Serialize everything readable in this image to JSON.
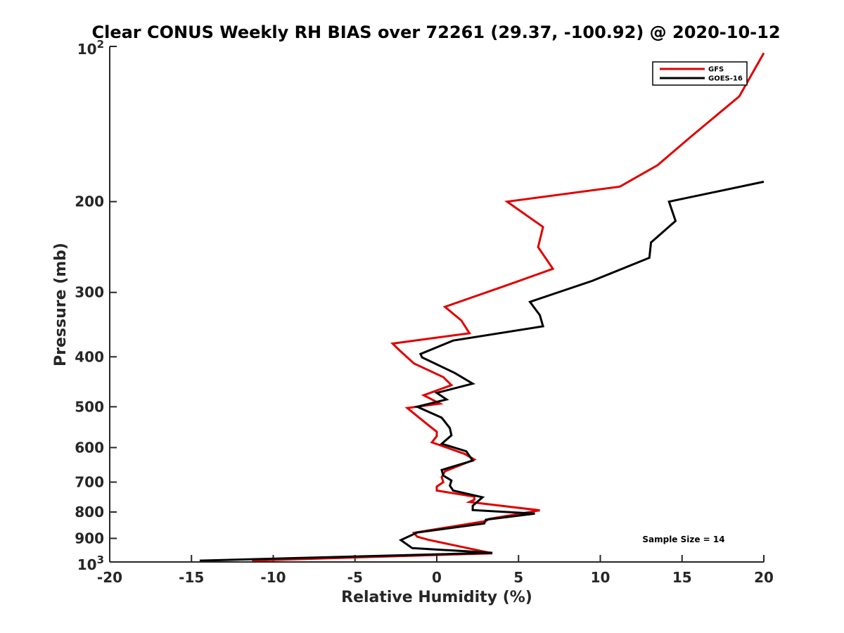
{
  "chart_data": {
    "type": "line",
    "title": "Clear CONUS Weekly RH BIAS over 72261 (29.37, -100.92) @ 2020-10-12",
    "xlabel": "Relative Humidity (%)",
    "ylabel": "Pressure (mb)",
    "xlim": [
      -20,
      20
    ],
    "ylim": [
      100,
      1000
    ],
    "y_scale": "log",
    "y_reversed": true,
    "x_ticks": [
      "-20",
      "-15",
      "-10",
      "-5",
      "0",
      "5",
      "10",
      "15",
      "20"
    ],
    "x_tick_values": [
      -20,
      -15,
      -10,
      -5,
      0,
      5,
      10,
      15,
      20
    ],
    "y_ticks": [
      {
        "value": 100,
        "base": "10",
        "exp": "2"
      },
      {
        "value": 200,
        "label": "200"
      },
      {
        "value": 300,
        "label": "300"
      },
      {
        "value": 400,
        "label": "400"
      },
      {
        "value": 500,
        "label": "500"
      },
      {
        "value": 600,
        "label": "600"
      },
      {
        "value": 700,
        "label": "700"
      },
      {
        "value": 800,
        "label": "800"
      },
      {
        "value": 900,
        "label": "900"
      },
      {
        "value": 1000,
        "base": "10",
        "exp": "3"
      }
    ],
    "grid": false,
    "legend_position": "top-right",
    "annotation": "Sample Size = 14",
    "series": [
      {
        "name": "GFS",
        "color": "#e00000",
        "points": [
          [
            20,
            103
          ],
          [
            18.5,
            125
          ],
          [
            15.5,
            150
          ],
          [
            13.5,
            170
          ],
          [
            11.2,
            187
          ],
          [
            4.3,
            200
          ],
          [
            6.5,
            224
          ],
          [
            6.2,
            245
          ],
          [
            7.1,
            270
          ],
          [
            4.5,
            289
          ],
          [
            0.5,
            320
          ],
          [
            1.5,
            340
          ],
          [
            2.0,
            360
          ],
          [
            -2.7,
            377
          ],
          [
            -2.3,
            388
          ],
          [
            -1.4,
            412
          ],
          [
            0.4,
            438
          ],
          [
            0.9,
            454
          ],
          [
            -0.8,
            475
          ],
          [
            0.2,
            493
          ],
          [
            -1.8,
            503
          ],
          [
            -0.6,
            540
          ],
          [
            0.0,
            559
          ],
          [
            0.0,
            570
          ],
          [
            -0.3,
            586
          ],
          [
            1.7,
            617
          ],
          [
            2.3,
            633
          ],
          [
            0.5,
            667
          ],
          [
            0.3,
            685
          ],
          [
            0.4,
            700
          ],
          [
            0.0,
            714
          ],
          [
            0.0,
            727
          ],
          [
            2.3,
            747
          ],
          [
            2.3,
            757
          ],
          [
            2.0,
            765
          ],
          [
            6.3,
            794
          ],
          [
            3.2,
            825
          ],
          [
            3.0,
            833
          ],
          [
            -1.4,
            878
          ],
          [
            -1.2,
            893
          ],
          [
            -0.5,
            906
          ],
          [
            3.4,
            962
          ],
          [
            -11.3,
            994
          ]
        ]
      },
      {
        "name": "GOES-16",
        "color": "#000000",
        "points": [
          [
            20,
            183
          ],
          [
            14.2,
            200
          ],
          [
            14.6,
            218
          ],
          [
            13.1,
            240
          ],
          [
            13.0,
            257
          ],
          [
            9.5,
            285
          ],
          [
            5.7,
            313
          ],
          [
            6.3,
            332
          ],
          [
            6.5,
            349
          ],
          [
            1.0,
            372
          ],
          [
            -1.0,
            395
          ],
          [
            -0.9,
            401
          ],
          [
            1.1,
            430
          ],
          [
            2.2,
            451
          ],
          [
            0.0,
            470
          ],
          [
            0.6,
            484
          ],
          [
            -1.2,
            500
          ],
          [
            0.3,
            525
          ],
          [
            0.8,
            550
          ],
          [
            0.9,
            568
          ],
          [
            0.3,
            590
          ],
          [
            1.8,
            610
          ],
          [
            2.2,
            636
          ],
          [
            0.3,
            663
          ],
          [
            0.4,
            680
          ],
          [
            0.9,
            695
          ],
          [
            0.8,
            711
          ],
          [
            1.0,
            727
          ],
          [
            2.8,
            749
          ],
          [
            2.2,
            778
          ],
          [
            2.2,
            793
          ],
          [
            6.0,
            806
          ],
          [
            3.0,
            828
          ],
          [
            2.9,
            842
          ],
          [
            -1.2,
            877
          ],
          [
            -2.2,
            907
          ],
          [
            -1.5,
            940
          ],
          [
            3.4,
            960
          ],
          [
            -14.5,
            994
          ]
        ]
      }
    ]
  }
}
